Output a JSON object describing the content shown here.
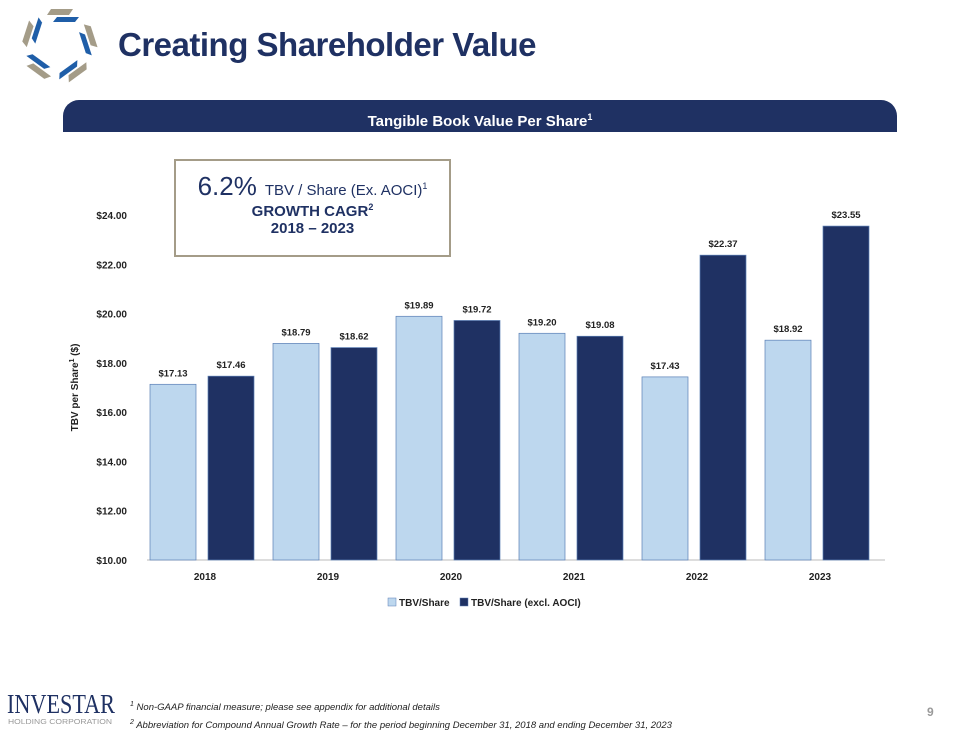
{
  "header": {
    "title": "Creating Shareholder Value",
    "banner": "Tangible Book Value Per Share",
    "banner_sup": "1"
  },
  "callout": {
    "pct": "6.2%",
    "metric": "TBV / Share (Ex. AOCI)",
    "metric_sup": "1",
    "growth": "GROWTH CAGR",
    "growth_sup": "2",
    "period": "2018 – 2023"
  },
  "footnotes": [
    {
      "sup": "1",
      "text": "Non-GAAP financial measure; please see appendix for additional details"
    },
    {
      "sup": "2",
      "text": "Abbreviation for Compound Annual Growth Rate – for the period beginning December 31, 2018 and ending December 31, 2023"
    }
  ],
  "page_number": "9",
  "logo": {
    "name": "INVESTAR",
    "sub": "HOLDING CORPORATION"
  },
  "chart_data": {
    "type": "bar",
    "categories": [
      "2018",
      "2019",
      "2020",
      "2021",
      "2022",
      "2023"
    ],
    "series": [
      {
        "name": "TBV/Share",
        "values": [
          17.13,
          18.79,
          19.89,
          19.2,
          17.43,
          18.92
        ],
        "labels": [
          "$17.13",
          "$18.79",
          "$19.89",
          "$19.20",
          "$17.43",
          "$18.92"
        ],
        "color": "#bdd7ee"
      },
      {
        "name": "TBV/Share (excl. AOCI)",
        "values": [
          17.46,
          18.62,
          19.72,
          19.08,
          22.37,
          23.55
        ],
        "labels": [
          "$17.46",
          "$18.62",
          "$19.72",
          "$19.08",
          "$22.37",
          "$23.55"
        ],
        "color": "#1f3163"
      }
    ],
    "ylabel": "TBV per Share",
    "ylabel_sup": "1",
    "ylabel_unit": "($)",
    "ylim": [
      10,
      24
    ],
    "yticks": [
      "$10.00",
      "$12.00",
      "$14.00",
      "$16.00",
      "$18.00",
      "$20.00",
      "$22.00",
      "$24.00"
    ],
    "legend": "bottom",
    "grid": false
  }
}
